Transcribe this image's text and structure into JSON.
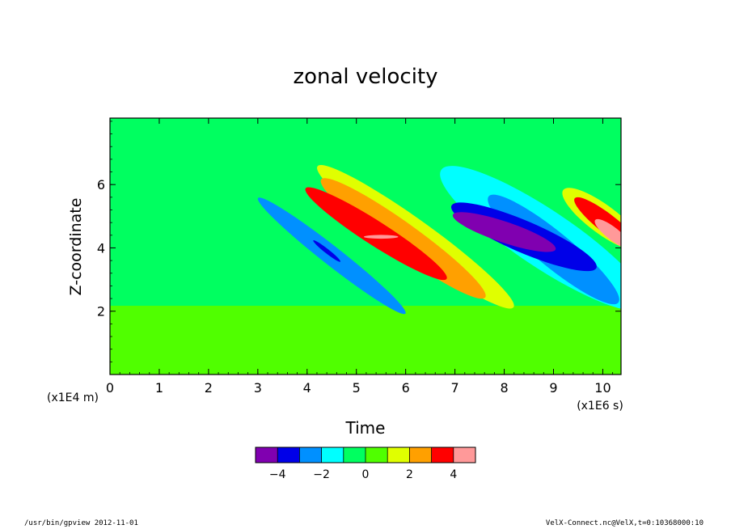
{
  "chart_data": {
    "type": "heatmap",
    "title": "zonal velocity",
    "xlabel": "Time",
    "ylabel": "Z-coordinate",
    "x_unit": "(x1E6 s)",
    "y_unit": "(x1E4 m)",
    "xlim": [
      0,
      10.37
    ],
    "ylim": [
      0,
      8.1
    ],
    "x_ticks": [
      0,
      1,
      2,
      3,
      4,
      5,
      6,
      7,
      8,
      9,
      10
    ],
    "y_ticks": [
      2,
      4,
      6
    ],
    "grid": false,
    "colorbar": {
      "placement": "bottom",
      "colors": [
        "#8000b0",
        "#0000e8",
        "#0090ff",
        "#00ffff",
        "#00ff60",
        "#50ff00",
        "#e0ff00",
        "#ffa000",
        "#ff0000",
        "#ff9999"
      ],
      "boundaries": [
        -5,
        -4,
        -3,
        -2,
        -1,
        0,
        1,
        2,
        3,
        4,
        5
      ],
      "tick_labels": [
        "−4",
        "−2",
        "0",
        "2",
        "4"
      ],
      "tick_values": [
        -4,
        -2,
        0,
        2,
        4
      ]
    },
    "features": [
      {
        "level": 1,
        "center": [
          6.2,
          4.35
        ],
        "semi_axes": [
          2.45,
          0.52
        ],
        "tilt": 0.17
      },
      {
        "level": 2,
        "center": [
          5.95,
          4.3
        ],
        "semi_axes": [
          2.05,
          0.48
        ],
        "tilt": 0.17
      },
      {
        "level": 3,
        "center": [
          5.4,
          4.45
        ],
        "semi_axes": [
          1.7,
          0.38
        ],
        "tilt": 0.14
      },
      {
        "level": 4,
        "center": [
          5.5,
          4.35
        ],
        "semi_axes": [
          0.35,
          0.06
        ],
        "tilt": 0.0
      },
      {
        "level": -1,
        "center": [
          8.8,
          4.3
        ],
        "semi_axes": [
          2.5,
          0.9
        ],
        "tilt": 0.15
      },
      {
        "level": -2,
        "center": [
          9.0,
          3.95
        ],
        "semi_axes": [
          1.7,
          0.55
        ],
        "tilt": 0.22
      },
      {
        "level": -3,
        "center": [
          8.4,
          4.35
        ],
        "semi_axes": [
          1.6,
          0.5
        ],
        "tilt": 0.08
      },
      {
        "level": -4,
        "center": [
          8.0,
          4.5
        ],
        "semi_axes": [
          1.1,
          0.33
        ],
        "tilt": 0.06
      },
      {
        "level": -2,
        "center": [
          4.5,
          3.75
        ],
        "semi_axes": [
          1.9,
          0.3
        ],
        "tilt": 0.2
      },
      {
        "level": -3,
        "center": [
          4.4,
          3.9
        ],
        "semi_axes": [
          0.35,
          0.07
        ],
        "tilt": 0.2
      },
      {
        "level": 1,
        "center": [
          10.0,
          4.9
        ],
        "semi_axes": [
          1.0,
          0.45
        ],
        "tilt": 0.18
      },
      {
        "level": 3,
        "center": [
          10.1,
          4.75
        ],
        "semi_axes": [
          0.85,
          0.3
        ],
        "tilt": 0.2
      },
      {
        "level": 4,
        "center": [
          10.2,
          4.45
        ],
        "semi_axes": [
          0.45,
          0.2
        ],
        "tilt": 0.2
      }
    ]
  },
  "footer": {
    "left": "/usr/bin/gpview   2012-11-01",
    "right": "VelX-Connect.nc@VelX,t=0:10368000:10"
  }
}
